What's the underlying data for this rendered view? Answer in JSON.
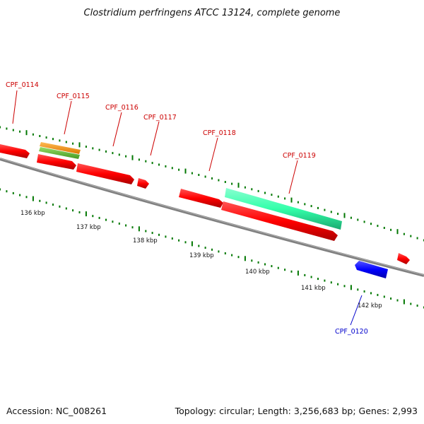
{
  "title": "Clostridium perfringens ATCC 13124, complete genome",
  "footer": {
    "accession": "Accession: NC_008261",
    "summary": "Topology: circular; Length: 3,256,683 bp; Genes: 2,993"
  },
  "scale_labels": [
    "136 kbp",
    "137 kbp",
    "138 kbp",
    "139 kbp",
    "140 kbp",
    "141 kbp",
    "142 kbp"
  ],
  "genes": [
    {
      "label": "CPF_0114",
      "strand": "forward"
    },
    {
      "label": "CPF_0115",
      "strand": "forward"
    },
    {
      "label": "CPF_0116",
      "strand": "forward"
    },
    {
      "label": "CPF_0117",
      "strand": "forward"
    },
    {
      "label": "CPF_0118",
      "strand": "forward"
    },
    {
      "label": "CPF_0119",
      "strand": "forward"
    },
    {
      "label": "CPF_0120",
      "strand": "reverse"
    }
  ],
  "colors": {
    "forward_gene": "#ff0000",
    "reverse_gene": "#0000ff",
    "forward_label": "#cc0000",
    "reverse_label": "#0000cc",
    "tick": "#007700",
    "backbone": "#808080",
    "orange_track": "#ff9900",
    "green_track": "#66cc33",
    "teal_track": "#33ffaa"
  }
}
